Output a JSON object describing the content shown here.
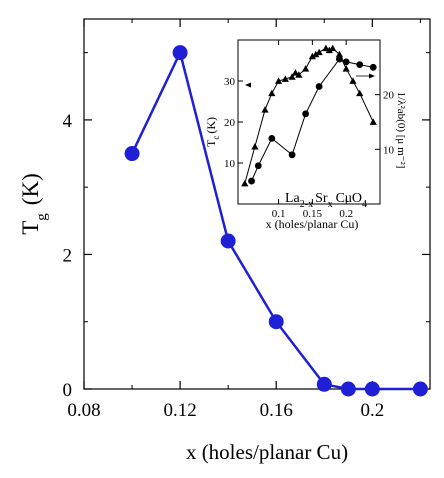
{
  "chart_data": [
    {
      "type": "line",
      "xlabel": "x (holes/planar Cu)",
      "ylabel_main": "T",
      "ylabel_sub": "g",
      "ylabel_unit": "(K)",
      "xlim": [
        0.08,
        0.224
      ],
      "ylim": [
        0,
        5.5
      ],
      "xticks": [
        "0.08",
        "0.12",
        "0.16",
        "0.2"
      ],
      "xtick_values": [
        0.08,
        0.12,
        0.16,
        0.2
      ],
      "yticks": [
        "0",
        "2",
        "4"
      ],
      "ytick_values": [
        0,
        2,
        4
      ],
      "series": [
        {
          "color": "#1f1fd6",
          "x": [
            0.1,
            0.12,
            0.14,
            0.16,
            0.18,
            0.19,
            0.2,
            0.22
          ],
          "y": [
            3.5,
            5.0,
            2.2,
            1.0,
            0.07,
            0.0,
            0.0,
            0.0
          ]
        }
      ]
    },
    {
      "type": "line",
      "inset": true,
      "xlabel": "x (holes/planar Cu)",
      "ylabel_left": "T",
      "ylabel_left_sub": "c",
      "ylabel_left_unit": "(K)",
      "ylabel_right": "1/λ²ab(0) [μ m⁻²]",
      "annotation_main": "La",
      "annotation_sub1": "2-x",
      "annotation_mid": "Sr",
      "annotation_sub2": "x",
      "annotation_end": "CuO",
      "annotation_sub3": "4",
      "xlim": [
        0.04,
        0.25
      ],
      "ylim_left": [
        0,
        40
      ],
      "ylim_right": [
        0,
        30
      ],
      "xticks": [
        "0.1",
        "0.15",
        "0.2"
      ],
      "xtick_values": [
        0.1,
        0.15,
        0.2
      ],
      "yticks_left": [
        "10",
        "20",
        "30"
      ],
      "ytick_values_left": [
        10,
        20,
        30
      ],
      "yticks_right": [
        "10",
        "20"
      ],
      "ytick_values_right": [
        10,
        20
      ],
      "series": [
        {
          "marker": "triangle",
          "axis": "left",
          "x": [
            0.05,
            0.065,
            0.08,
            0.09,
            0.1,
            0.11,
            0.12,
            0.125,
            0.13,
            0.14,
            0.15,
            0.155,
            0.16,
            0.17,
            0.175,
            0.18,
            0.19,
            0.2,
            0.21,
            0.22,
            0.24
          ],
          "y": [
            5,
            14,
            23,
            27,
            30,
            30.5,
            31,
            32,
            31.5,
            33,
            36,
            36.5,
            37,
            38,
            37.5,
            38,
            36.5,
            33,
            30,
            27,
            20
          ]
        },
        {
          "marker": "circle",
          "axis": "right",
          "x": [
            0.06,
            0.07,
            0.09,
            0.12,
            0.14,
            0.16,
            0.19,
            0.2,
            0.22,
            0.24
          ],
          "y": [
            4.2,
            7,
            12,
            9,
            16.5,
            21.5,
            26.5,
            26,
            25.5,
            25
          ]
        }
      ]
    }
  ]
}
